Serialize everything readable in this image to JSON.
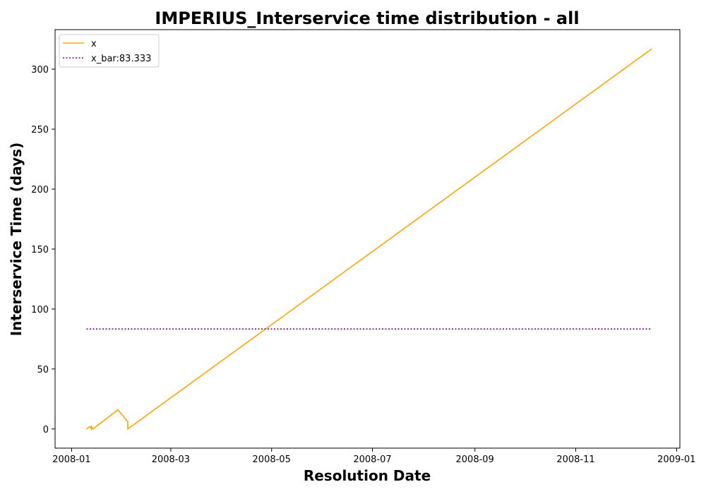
{
  "chart_data": {
    "type": "line",
    "title": "IMPERIUS_Interservice time distribution - all",
    "xlabel": "Resolution Date",
    "ylabel": "Interservice Time (days)",
    "x_axis": {
      "min": "2007-12-22",
      "max": "2009-01-03",
      "ticks": [
        "2008-01-01",
        "2008-03-01",
        "2008-05-01",
        "2008-07-01",
        "2008-09-01",
        "2008-11-01",
        "2009-01-01"
      ],
      "tick_labels": [
        "2008-01",
        "2008-03",
        "2008-05",
        "2008-07",
        "2008-09",
        "2008-11",
        "2009-01"
      ]
    },
    "y_axis": {
      "min": -16,
      "max": 333,
      "ticks": [
        0,
        50,
        100,
        150,
        200,
        250,
        300
      ],
      "tick_labels": [
        "0",
        "50",
        "100",
        "150",
        "200",
        "250",
        "300"
      ]
    },
    "grid": false,
    "legend_position": "top-left",
    "series": [
      {
        "name": "x",
        "color": "#FFA500",
        "style": "solid",
        "points": [
          {
            "x": "2008-01-10",
            "y": 0
          },
          {
            "x": "2008-01-12",
            "y": 2
          },
          {
            "x": "2008-01-13",
            "y": 0
          },
          {
            "x": "2008-01-13",
            "y": 2
          },
          {
            "x": "2008-01-14",
            "y": 0
          },
          {
            "x": "2008-01-29",
            "y": 16
          },
          {
            "x": "2008-02-04",
            "y": 6
          },
          {
            "x": "2008-02-04",
            "y": 0
          },
          {
            "x": "2008-12-17",
            "y": 317
          }
        ]
      },
      {
        "name": "x_bar:83.333",
        "color": "#800080",
        "style": "dotted",
        "points": [
          {
            "x": "2008-01-10",
            "y": 83.333
          },
          {
            "x": "2008-12-17",
            "y": 83.333
          }
        ]
      }
    ]
  }
}
